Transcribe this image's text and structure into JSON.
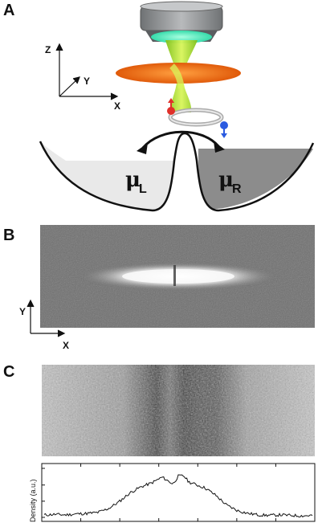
{
  "panels": {
    "a": {
      "letter": "A",
      "axes": {
        "z": "Z",
        "y": "Y",
        "x": "X"
      },
      "mu_left_symbol": "μ",
      "mu_left_sub": "L",
      "mu_right_symbol": "μ",
      "mu_right_sub": "R"
    },
    "b": {
      "letter": "B",
      "axes": {
        "y": "Y",
        "x": "X"
      }
    },
    "c": {
      "letter": "C",
      "ylabel": "Density (a.u.)"
    }
  },
  "chart_data": {
    "type": "line",
    "title": "",
    "xlabel": "",
    "ylabel": "Density (a.u.)",
    "x": [
      0,
      0.04,
      0.08,
      0.12,
      0.16,
      0.2,
      0.24,
      0.28,
      0.32,
      0.36,
      0.4,
      0.44,
      0.46,
      0.48,
      0.5,
      0.52,
      0.54,
      0.56,
      0.6,
      0.64,
      0.68,
      0.72,
      0.76,
      0.8,
      0.84,
      0.88,
      0.92,
      0.96,
      1.0
    ],
    "values": [
      0.05,
      0.06,
      0.05,
      0.07,
      0.08,
      0.1,
      0.18,
      0.32,
      0.5,
      0.62,
      0.7,
      0.82,
      0.75,
      0.68,
      0.84,
      0.85,
      0.72,
      0.68,
      0.6,
      0.45,
      0.25,
      0.14,
      0.08,
      0.05,
      0.04,
      0.05,
      0.04,
      0.03,
      0.04
    ],
    "ylim": [
      0,
      1
    ],
    "grid": false
  },
  "colors": {
    "objective_housing": "#9a9c9e",
    "objective_lens": "#4fe8b8",
    "beam_green": "#9bd62a",
    "trap_orange": "#f07a1a",
    "reservoir_left": "#e9e9e9",
    "reservoir_right": "#8c8c8c",
    "spin_red": "#e0302a",
    "spin_blue": "#2a5ae0"
  }
}
